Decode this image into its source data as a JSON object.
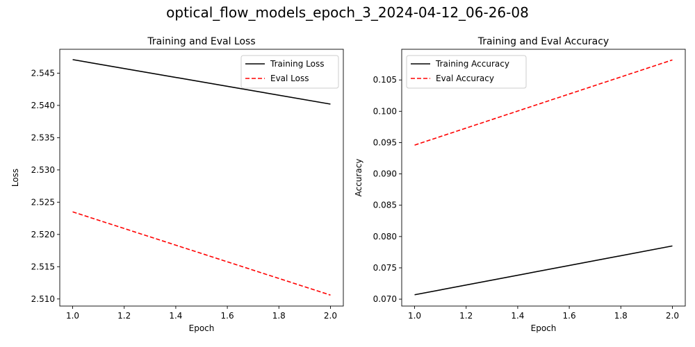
{
  "suptitle": "optical_flow_models_epoch_3_2024-04-12_06-26-08",
  "chart_data": [
    {
      "type": "line",
      "title": "Training and Eval Loss",
      "xlabel": "Epoch",
      "ylabel": "Loss",
      "x": [
        1.0,
        2.0
      ],
      "xlim": [
        0.95,
        2.05
      ],
      "ylim": [
        2.5089,
        2.5487
      ],
      "xticks": [
        1.0,
        1.2,
        1.4,
        1.6,
        1.8,
        2.0
      ],
      "xtick_labels": [
        "1.0",
        "1.2",
        "1.4",
        "1.6",
        "1.8",
        "2.0"
      ],
      "yticks": [
        2.51,
        2.515,
        2.52,
        2.525,
        2.53,
        2.535,
        2.54,
        2.545
      ],
      "ytick_labels": [
        "2.510",
        "2.515",
        "2.520",
        "2.525",
        "2.530",
        "2.535",
        "2.540",
        "2.545"
      ],
      "legend_position": "top-right",
      "series": [
        {
          "name": "Training Loss",
          "values": [
            2.5471,
            2.5402
          ],
          "color": "#000000",
          "style": "solid"
        },
        {
          "name": "Eval Loss",
          "values": [
            2.5235,
            2.5106
          ],
          "color": "#ff0000",
          "style": "dashed"
        }
      ]
    },
    {
      "type": "line",
      "title": "Training and Eval Accuracy",
      "xlabel": "Epoch",
      "ylabel": "Accuracy",
      "x": [
        1.0,
        2.0
      ],
      "xlim": [
        0.95,
        2.05
      ],
      "ylim": [
        0.0689,
        0.1099
      ],
      "xticks": [
        1.0,
        1.2,
        1.4,
        1.6,
        1.8,
        2.0
      ],
      "xtick_labels": [
        "1.0",
        "1.2",
        "1.4",
        "1.6",
        "1.8",
        "2.0"
      ],
      "yticks": [
        0.07,
        0.075,
        0.08,
        0.085,
        0.09,
        0.095,
        0.1,
        0.105
      ],
      "ytick_labels": [
        "0.070",
        "0.075",
        "0.080",
        "0.085",
        "0.090",
        "0.095",
        "0.100",
        "0.105"
      ],
      "legend_position": "top-left",
      "series": [
        {
          "name": "Training Accuracy",
          "values": [
            0.0707,
            0.0785
          ],
          "color": "#000000",
          "style": "solid"
        },
        {
          "name": "Eval Accuracy",
          "values": [
            0.0946,
            0.1082
          ],
          "color": "#ff0000",
          "style": "dashed"
        }
      ]
    }
  ]
}
